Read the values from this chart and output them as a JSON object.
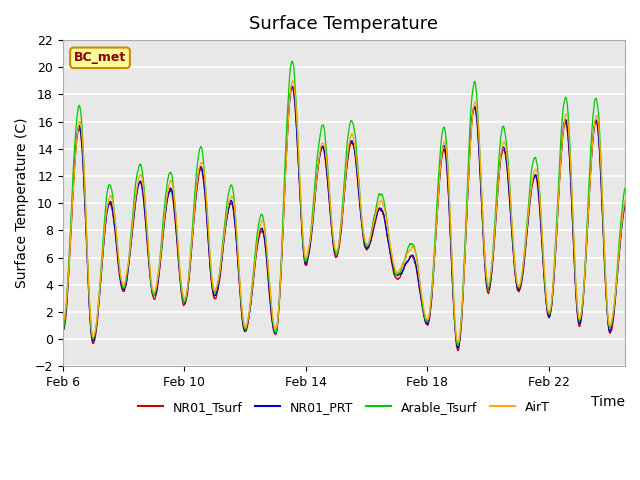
{
  "title": "Surface Temperature",
  "ylabel": "Surface Temperature (C)",
  "xlabel": "Time",
  "ylim": [
    -2,
    22
  ],
  "yticks": [
    -2,
    0,
    2,
    4,
    6,
    8,
    10,
    12,
    14,
    16,
    18,
    20,
    22
  ],
  "xtick_labels": [
    "Feb 6",
    "Feb 10",
    "Feb 14",
    "Feb 18",
    "Feb 22"
  ],
  "xtick_positions": [
    0,
    4,
    8,
    12,
    16
  ],
  "colors": {
    "NR01_Tsurf": "#cc0000",
    "NR01_PRT": "#0000cc",
    "Arable_Tsurf": "#00cc00",
    "AirT": "#ffaa00"
  },
  "bg_color": "#e8e8e8",
  "outer_bg": "#ffffff",
  "annotation_text": "BC_met",
  "annotation_bg": "#ffff99",
  "annotation_border": "#cc8800",
  "title_fontsize": 13,
  "axis_fontsize": 10,
  "tick_fontsize": 9
}
